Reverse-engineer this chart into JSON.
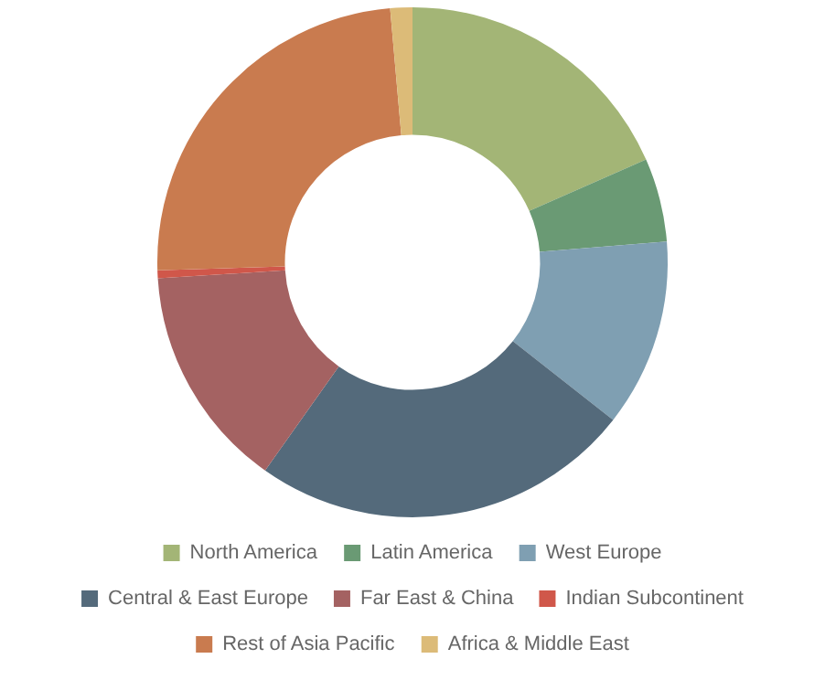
{
  "chart_data": {
    "type": "donut",
    "categories": [
      "North America",
      "Latin America",
      "West Europe",
      "Central & East Europe",
      "Far East & China",
      "Indian Subcontinent",
      "Rest of Asia Pacific",
      "Africa & Middle East"
    ],
    "values": [
      18.4,
      5.3,
      11.9,
      24.2,
      14.2,
      0.5,
      24.1,
      1.4
    ],
    "colors": [
      "#a3b576",
      "#6a9a74",
      "#7f9fb2",
      "#546a7b",
      "#a46262",
      "#d0574a",
      "#c97b4f",
      "#dcbb78"
    ],
    "legend": "bottom"
  }
}
